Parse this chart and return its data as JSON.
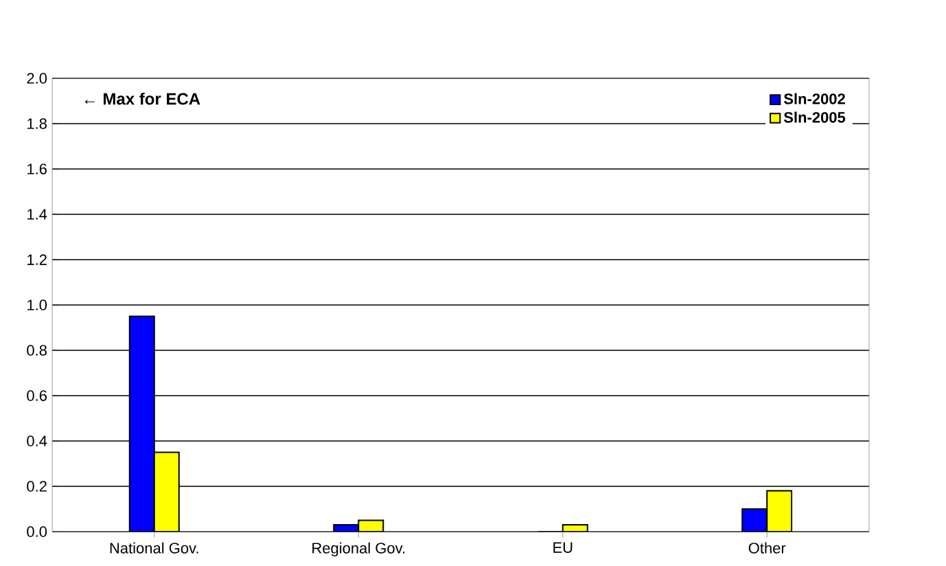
{
  "chart_data": {
    "type": "bar",
    "categories": [
      "National Gov.",
      "Regional Gov.",
      "EU",
      "Other"
    ],
    "series": [
      {
        "name": "Sln-2002",
        "color": "#0000ff",
        "values": [
          0.95,
          0.03,
          0,
          0.1
        ]
      },
      {
        "name": "Sln-2005",
        "color": "#ffff00",
        "values": [
          0.35,
          0.05,
          0.03,
          0.18
        ]
      }
    ],
    "ylim": [
      0,
      2.0
    ],
    "yticks": [
      {
        "value": 0,
        "label": "0.0"
      },
      {
        "value": 0.2,
        "label": "0.2"
      },
      {
        "value": 0.4,
        "label": "0.4"
      },
      {
        "value": 0.6,
        "label": "0.6"
      },
      {
        "value": 0.8,
        "label": "0.8"
      },
      {
        "value": 1.0,
        "label": "1.0"
      },
      {
        "value": 1.2,
        "label": "1.2"
      },
      {
        "value": 1.4,
        "label": "1.4"
      },
      {
        "value": 1.6,
        "label": "1.6"
      },
      {
        "value": 1.8,
        "label": "1.8"
      },
      {
        "value": 2.0,
        "label": "2.0"
      }
    ],
    "annotations": [
      "← Max for ECA"
    ],
    "grid": "y",
    "legend": "top right"
  }
}
